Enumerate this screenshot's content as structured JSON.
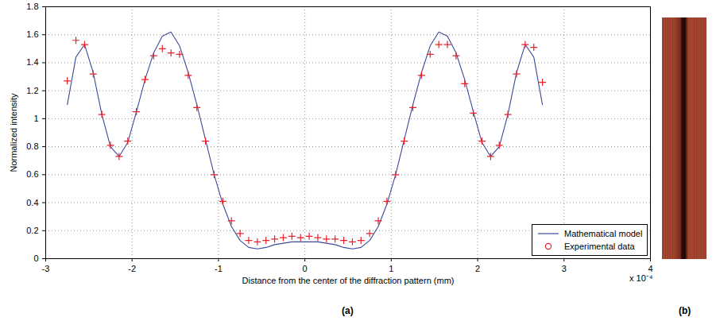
{
  "chart_data": {
    "type": "line",
    "x_label": "Distance from the center of the diffraction pattern (mm)",
    "y_label": "Normalized intensity",
    "annotations": [
      "x 10⁻⁴"
    ],
    "panel_labels": [
      "(a)",
      "(b)"
    ],
    "x": [
      -2.75,
      -2.65,
      -2.55,
      -2.45,
      -2.35,
      -2.25,
      -2.15,
      -2.05,
      -1.95,
      -1.85,
      -1.75,
      -1.65,
      -1.55,
      -1.45,
      -1.35,
      -1.25,
      -1.15,
      -1.05,
      -0.95,
      -0.85,
      -0.75,
      -0.65,
      -0.55,
      -0.45,
      -0.35,
      -0.25,
      -0.15,
      -0.05,
      0.05,
      0.15,
      0.25,
      0.35,
      0.45,
      0.55,
      0.65,
      0.75,
      0.85,
      0.95,
      1.05,
      1.15,
      1.25,
      1.35,
      1.45,
      1.55,
      1.65,
      1.75,
      1.85,
      1.95,
      2.05,
      2.15,
      2.25,
      2.35,
      2.45,
      2.55,
      2.65,
      2.75
    ],
    "series": [
      {
        "name": "Mathematical model",
        "type": "line",
        "color": "#3b4a9a",
        "line_style": "solid",
        "values": [
          1.1,
          1.44,
          1.53,
          1.33,
          1.03,
          0.8,
          0.73,
          0.83,
          1.05,
          1.28,
          1.47,
          1.59,
          1.62,
          1.52,
          1.33,
          1.1,
          0.85,
          0.6,
          0.39,
          0.23,
          0.13,
          0.08,
          0.07,
          0.08,
          0.1,
          0.11,
          0.12,
          0.12,
          0.12,
          0.12,
          0.11,
          0.1,
          0.08,
          0.07,
          0.08,
          0.13,
          0.23,
          0.39,
          0.6,
          0.85,
          1.1,
          1.33,
          1.52,
          1.62,
          1.59,
          1.47,
          1.28,
          1.05,
          0.83,
          0.73,
          0.8,
          1.03,
          1.33,
          1.53,
          1.44,
          1.1
        ]
      },
      {
        "name": "Experimental data",
        "type": "scatter",
        "color": "#e8202a",
        "marker": "plus",
        "values": [
          1.27,
          1.56,
          1.53,
          1.32,
          1.03,
          0.81,
          0.73,
          0.84,
          1.05,
          1.28,
          1.45,
          1.5,
          1.47,
          1.46,
          1.31,
          1.08,
          0.84,
          0.6,
          0.41,
          0.27,
          0.18,
          0.13,
          0.12,
          0.13,
          0.14,
          0.15,
          0.16,
          0.15,
          0.16,
          0.15,
          0.14,
          0.14,
          0.13,
          0.12,
          0.13,
          0.18,
          0.27,
          0.41,
          0.6,
          0.84,
          1.08,
          1.31,
          1.46,
          1.53,
          1.53,
          1.45,
          1.25,
          1.04,
          0.84,
          0.73,
          0.81,
          1.03,
          1.32,
          1.53,
          1.51,
          1.26
        ]
      }
    ],
    "xlim": [
      -3,
      4
    ],
    "xticks": [
      -3,
      -2,
      -1,
      0,
      1,
      2,
      3,
      4
    ],
    "ylim": [
      0,
      1.8
    ],
    "yticks": [
      0,
      0.2,
      0.4,
      0.6,
      0.8,
      1,
      1.2,
      1.4,
      1.6,
      1.8
    ],
    "grid": true,
    "legend": "southeast"
  }
}
